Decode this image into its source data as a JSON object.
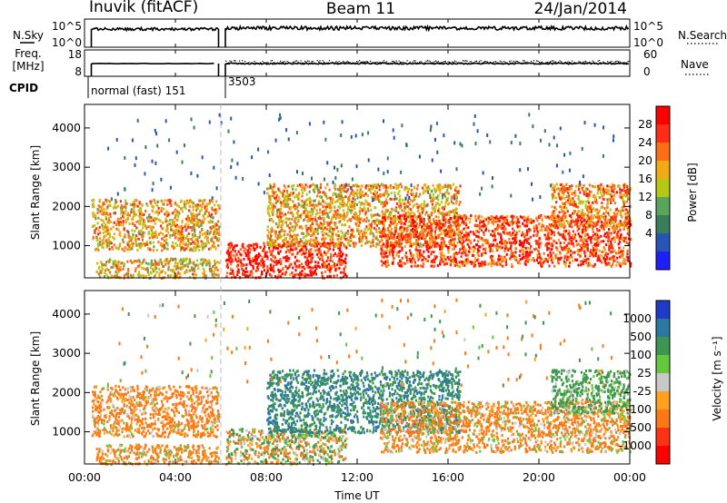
{
  "header": {
    "station": "Inuvik (fitACF)",
    "beam": "Beam 11",
    "date": "24/Jan/2014"
  },
  "strip1": {
    "left_label": "N.Sky",
    "left_ticks": [
      "10^5",
      "10^0"
    ],
    "right_ticks": [
      "10^5",
      "10^0"
    ],
    "right_label": "N.Search"
  },
  "strip2": {
    "left_label_1": "Freq.",
    "left_label_2": "[MHz]",
    "left_ticks": [
      "18",
      "8"
    ],
    "right_ticks": [
      "60",
      "0"
    ],
    "right_label": "Nave"
  },
  "cpid": {
    "label": "CPID",
    "segment_1": "normal (fast) 151",
    "segment_2": "3503"
  },
  "axes": {
    "ylabel": "Slant Range [km]",
    "xlabel": "Time UT",
    "yticks": [
      "1000",
      "2000",
      "3000",
      "4000"
    ],
    "xticks": [
      "00:00",
      "04:00",
      "08:00",
      "12:00",
      "16:00",
      "20:00",
      "00:00"
    ]
  },
  "colorbars": {
    "power": {
      "label": "Power [dB]",
      "ticks": [
        "4",
        "8",
        "12",
        "16",
        "20",
        "24",
        "28"
      ],
      "colors": [
        "#1e1eff",
        "#2855b4",
        "#3a7d5a",
        "#5aa55a",
        "#b4c814",
        "#f0aa14",
        "#ff6e14",
        "#ff2d14",
        "#ff0000"
      ]
    },
    "velocity": {
      "label": "Velocity [m s⁻¹]",
      "ticks": [
        "1000",
        "500",
        "100",
        "25",
        "-25",
        "-100",
        "-500",
        "-1000"
      ],
      "colors": [
        "#1e3cc8",
        "#2d78a0",
        "#3c9650",
        "#64c83c",
        "#c8c8c8",
        "#ffa01e",
        "#ff7814",
        "#ff3214",
        "#ff0000"
      ]
    }
  },
  "chart_data": [
    {
      "type": "heatmap",
      "title": "Power",
      "colorbar_label": "Power [dB]",
      "xlabel": "Time UT",
      "ylabel": "Slant Range [km]",
      "xlim": [
        0,
        24
      ],
      "ylim": [
        180,
        4600
      ],
      "color_range": [
        0,
        32
      ],
      "scatter_regions": [
        {
          "t": [
            0.3,
            5.9
          ],
          "range_km": [
            900,
            2200
          ],
          "dominant_db": 20
        },
        {
          "t": [
            0.5,
            5.9
          ],
          "range_km": [
            200,
            700
          ],
          "dominant_db": 18
        },
        {
          "t": [
            6.2,
            11.5
          ],
          "range_km": [
            200,
            1100
          ],
          "dominant_db": 28
        },
        {
          "t": [
            8.0,
            16.5
          ],
          "range_km": [
            1000,
            2600
          ],
          "dominant_db": 20
        },
        {
          "t": [
            13.0,
            24.0
          ],
          "range_km": [
            500,
            1800
          ],
          "dominant_db": 26
        },
        {
          "t": [
            20.5,
            24.0
          ],
          "range_km": [
            1500,
            2600
          ],
          "dominant_db": 22
        }
      ]
    },
    {
      "type": "heatmap",
      "title": "Velocity",
      "colorbar_label": "Velocity [m s⁻¹]",
      "xlabel": "Time UT",
      "ylabel": "Slant Range [km]",
      "xlim": [
        0,
        24
      ],
      "ylim": [
        180,
        4600
      ],
      "color_range": [
        -1000,
        1000
      ],
      "scatter_regions": [
        {
          "t": [
            0.3,
            5.9
          ],
          "range_km": [
            900,
            2200
          ],
          "dominant_ms": -200
        },
        {
          "t": [
            0.5,
            5.9
          ],
          "range_km": [
            200,
            700
          ],
          "dominant_ms": -150
        },
        {
          "t": [
            6.2,
            11.5
          ],
          "range_km": [
            200,
            1100
          ],
          "dominant_ms": 0
        },
        {
          "t": [
            8.0,
            16.5
          ],
          "range_km": [
            1000,
            2600
          ],
          "dominant_ms": 500
        },
        {
          "t": [
            13.0,
            24.0
          ],
          "range_km": [
            500,
            1800
          ],
          "dominant_ms": -150
        },
        {
          "t": [
            20.5,
            24.0
          ],
          "range_km": [
            1500,
            2600
          ],
          "dominant_ms": 200
        }
      ]
    }
  ]
}
